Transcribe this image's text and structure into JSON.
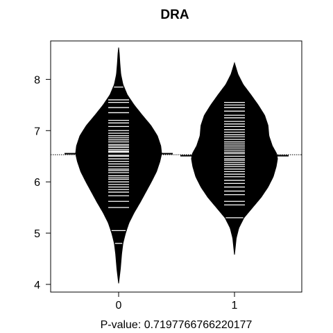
{
  "chart_data": {
    "type": "beanplot",
    "title": "DRA",
    "xlabel": "P-value: 0.7197766766220177",
    "ylabel": "",
    "categories": [
      "0",
      "1"
    ],
    "ylim": [
      3.85,
      8.75
    ],
    "yticks": [
      4,
      5,
      6,
      7,
      8
    ],
    "overall_mean": 6.53,
    "colors": {
      "bean": "#000000",
      "lines": "#ffffff",
      "axis": "#000000",
      "reference": "#000000"
    },
    "series": [
      {
        "name": "0",
        "mean": 6.55,
        "density": [
          [
            4.02,
            0.0
          ],
          [
            4.3,
            0.04
          ],
          [
            4.6,
            0.07
          ],
          [
            4.8,
            0.1
          ],
          [
            5.0,
            0.16
          ],
          [
            5.2,
            0.24
          ],
          [
            5.4,
            0.36
          ],
          [
            5.6,
            0.5
          ],
          [
            5.8,
            0.63
          ],
          [
            6.0,
            0.76
          ],
          [
            6.2,
            0.88
          ],
          [
            6.4,
            0.96
          ],
          [
            6.55,
            1.0
          ],
          [
            6.7,
            0.98
          ],
          [
            6.9,
            0.9
          ],
          [
            7.1,
            0.75
          ],
          [
            7.3,
            0.55
          ],
          [
            7.5,
            0.36
          ],
          [
            7.7,
            0.2
          ],
          [
            7.9,
            0.1
          ],
          [
            8.1,
            0.05
          ],
          [
            8.3,
            0.03
          ],
          [
            8.5,
            0.015
          ],
          [
            8.62,
            0.0
          ]
        ],
        "observations": [
          4.8,
          5.05,
          5.5,
          5.62,
          5.73,
          5.8,
          5.85,
          5.9,
          5.95,
          6.0,
          6.05,
          6.08,
          6.12,
          6.18,
          6.22,
          6.25,
          6.3,
          6.35,
          6.4,
          6.45,
          6.5,
          6.52,
          6.58,
          6.6,
          6.63,
          6.67,
          6.7,
          6.73,
          6.78,
          6.82,
          6.86,
          6.9,
          6.95,
          7.0,
          7.08,
          7.15,
          7.2,
          7.35,
          7.45,
          7.55,
          7.6,
          7.85
        ]
      },
      {
        "name": "1",
        "mean": 6.51,
        "density": [
          [
            4.58,
            0.0
          ],
          [
            4.9,
            0.04
          ],
          [
            5.1,
            0.1
          ],
          [
            5.3,
            0.22
          ],
          [
            5.5,
            0.42
          ],
          [
            5.7,
            0.62
          ],
          [
            5.9,
            0.78
          ],
          [
            6.1,
            0.9
          ],
          [
            6.3,
            0.97
          ],
          [
            6.45,
            1.0
          ],
          [
            6.55,
            0.98
          ],
          [
            6.7,
            0.88
          ],
          [
            6.9,
            0.8
          ],
          [
            7.1,
            0.78
          ],
          [
            7.3,
            0.7
          ],
          [
            7.5,
            0.55
          ],
          [
            7.7,
            0.38
          ],
          [
            7.9,
            0.2
          ],
          [
            8.1,
            0.08
          ],
          [
            8.32,
            0.0
          ]
        ],
        "observations": [
          5.3,
          5.55,
          5.62,
          5.75,
          5.82,
          5.9,
          5.97,
          6.03,
          6.1,
          6.15,
          6.2,
          6.25,
          6.3,
          6.34,
          6.38,
          6.42,
          6.45,
          6.5,
          6.55,
          6.58,
          6.62,
          6.66,
          6.7,
          6.74,
          6.78,
          6.83,
          6.88,
          6.92,
          6.97,
          7.02,
          7.08,
          7.13,
          7.18,
          7.25,
          7.3,
          7.38,
          7.45,
          7.5,
          7.55
        ]
      }
    ]
  }
}
